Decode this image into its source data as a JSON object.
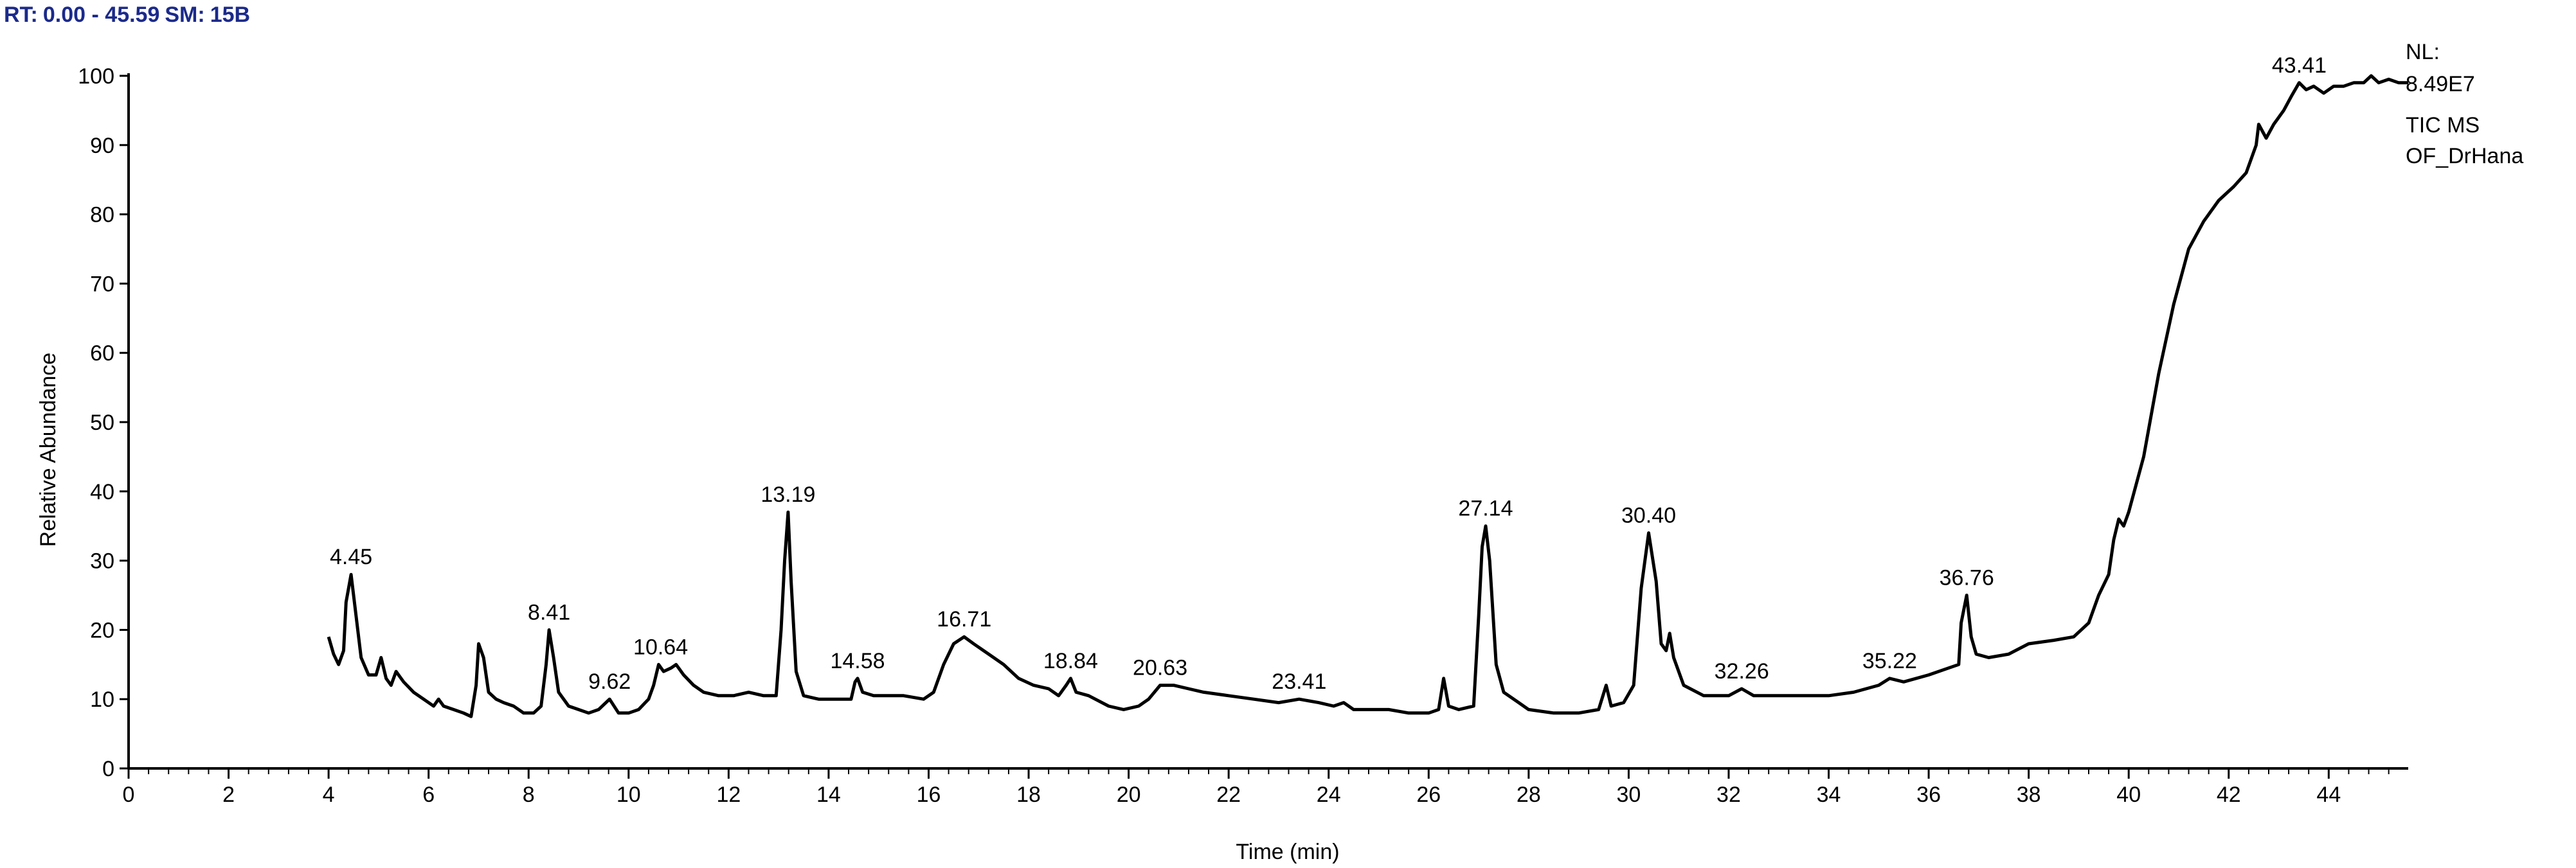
{
  "header": {
    "rt_label": "RT:",
    "rt_range": "0.00 - 45.59",
    "sm_label": "SM:",
    "sm_value": "15B"
  },
  "info": {
    "nl_label": "NL:",
    "nl_value": "8.49E7",
    "scan_type": "TIC MS",
    "file_name": "OF_DrHana"
  },
  "chart_data": {
    "type": "line",
    "title": "",
    "xlabel": "Time (min)",
    "ylabel": "Relative Abundance",
    "xlim": [
      0,
      45.59
    ],
    "ylim": [
      0,
      100
    ],
    "x_ticks": [
      0,
      2,
      4,
      6,
      8,
      10,
      12,
      14,
      16,
      18,
      20,
      22,
      24,
      26,
      28,
      30,
      32,
      34,
      36,
      38,
      40,
      42,
      44
    ],
    "y_ticks": [
      0,
      10,
      20,
      30,
      40,
      50,
      60,
      70,
      80,
      90,
      100
    ],
    "grid": false,
    "legend": "none",
    "series": [
      {
        "color": "#000000",
        "points": [
          [
            4.0,
            19
          ],
          [
            4.1,
            16.5
          ],
          [
            4.2,
            15
          ],
          [
            4.3,
            17
          ],
          [
            4.35,
            24
          ],
          [
            4.45,
            28
          ],
          [
            4.55,
            22
          ],
          [
            4.65,
            16
          ],
          [
            4.8,
            13.5
          ],
          [
            4.95,
            13.5
          ],
          [
            5.05,
            16
          ],
          [
            5.15,
            13
          ],
          [
            5.25,
            12
          ],
          [
            5.35,
            14
          ],
          [
            5.5,
            12.5
          ],
          [
            5.7,
            11
          ],
          [
            5.9,
            10
          ],
          [
            6.1,
            9
          ],
          [
            6.2,
            10
          ],
          [
            6.3,
            9
          ],
          [
            6.5,
            8.5
          ],
          [
            6.7,
            8
          ],
          [
            6.85,
            7.5
          ],
          [
            6.95,
            12
          ],
          [
            7.0,
            18
          ],
          [
            7.1,
            16
          ],
          [
            7.2,
            11
          ],
          [
            7.35,
            10
          ],
          [
            7.5,
            9.5
          ],
          [
            7.7,
            9
          ],
          [
            7.9,
            8
          ],
          [
            8.1,
            8
          ],
          [
            8.25,
            9
          ],
          [
            8.35,
            15
          ],
          [
            8.41,
            20
          ],
          [
            8.5,
            16
          ],
          [
            8.6,
            11
          ],
          [
            8.8,
            9
          ],
          [
            9.0,
            8.5
          ],
          [
            9.2,
            8
          ],
          [
            9.4,
            8.5
          ],
          [
            9.62,
            10
          ],
          [
            9.8,
            8
          ],
          [
            10.0,
            8
          ],
          [
            10.2,
            8.5
          ],
          [
            10.4,
            10
          ],
          [
            10.5,
            12
          ],
          [
            10.6,
            15
          ],
          [
            10.7,
            14
          ],
          [
            10.85,
            14.5
          ],
          [
            10.95,
            15
          ],
          [
            11.1,
            13.5
          ],
          [
            11.3,
            12
          ],
          [
            11.5,
            11
          ],
          [
            11.8,
            10.5
          ],
          [
            12.1,
            10.5
          ],
          [
            12.4,
            11
          ],
          [
            12.7,
            10.5
          ],
          [
            12.95,
            10.5
          ],
          [
            13.05,
            20
          ],
          [
            13.12,
            30
          ],
          [
            13.19,
            37
          ],
          [
            13.25,
            27
          ],
          [
            13.35,
            14
          ],
          [
            13.5,
            10.5
          ],
          [
            13.8,
            10
          ],
          [
            14.2,
            10
          ],
          [
            14.45,
            10
          ],
          [
            14.53,
            12.5
          ],
          [
            14.58,
            13
          ],
          [
            14.68,
            11
          ],
          [
            14.9,
            10.5
          ],
          [
            15.5,
            10.5
          ],
          [
            15.9,
            10
          ],
          [
            16.1,
            11
          ],
          [
            16.3,
            15
          ],
          [
            16.5,
            18
          ],
          [
            16.71,
            19
          ],
          [
            16.9,
            18
          ],
          [
            17.2,
            16.5
          ],
          [
            17.5,
            15
          ],
          [
            17.8,
            13
          ],
          [
            18.1,
            12
          ],
          [
            18.4,
            11.5
          ],
          [
            18.6,
            10.5
          ],
          [
            18.75,
            12
          ],
          [
            18.84,
            13
          ],
          [
            18.95,
            11
          ],
          [
            19.2,
            10.5
          ],
          [
            19.6,
            9
          ],
          [
            19.9,
            8.5
          ],
          [
            20.2,
            9
          ],
          [
            20.4,
            10
          ],
          [
            20.63,
            12
          ],
          [
            20.9,
            12
          ],
          [
            21.2,
            11.5
          ],
          [
            21.5,
            11
          ],
          [
            22.0,
            10.5
          ],
          [
            22.5,
            10
          ],
          [
            23.0,
            9.5
          ],
          [
            23.41,
            10
          ],
          [
            23.8,
            9.5
          ],
          [
            24.1,
            9
          ],
          [
            24.3,
            9.5
          ],
          [
            24.5,
            8.5
          ],
          [
            24.8,
            8.5
          ],
          [
            25.2,
            8.5
          ],
          [
            25.6,
            8
          ],
          [
            26.0,
            8
          ],
          [
            26.2,
            8.5
          ],
          [
            26.3,
            13
          ],
          [
            26.4,
            9
          ],
          [
            26.6,
            8.5
          ],
          [
            26.9,
            9
          ],
          [
            27.0,
            22
          ],
          [
            27.07,
            32
          ],
          [
            27.14,
            35
          ],
          [
            27.22,
            30
          ],
          [
            27.35,
            15
          ],
          [
            27.5,
            11
          ],
          [
            27.8,
            9.5
          ],
          [
            28.0,
            8.5
          ],
          [
            28.5,
            8
          ],
          [
            29.0,
            8
          ],
          [
            29.4,
            8.5
          ],
          [
            29.55,
            12
          ],
          [
            29.65,
            9
          ],
          [
            29.9,
            9.5
          ],
          [
            30.1,
            12
          ],
          [
            30.25,
            26
          ],
          [
            30.4,
            34
          ],
          [
            30.55,
            27
          ],
          [
            30.65,
            18
          ],
          [
            30.75,
            17
          ],
          [
            30.82,
            19.5
          ],
          [
            30.9,
            16
          ],
          [
            31.1,
            12
          ],
          [
            31.5,
            10.5
          ],
          [
            32.0,
            10.5
          ],
          [
            32.26,
            11.5
          ],
          [
            32.5,
            10.5
          ],
          [
            33.0,
            10.5
          ],
          [
            33.5,
            10.5
          ],
          [
            34.0,
            10.5
          ],
          [
            34.5,
            11
          ],
          [
            35.0,
            12
          ],
          [
            35.22,
            13
          ],
          [
            35.5,
            12.5
          ],
          [
            36.0,
            13.5
          ],
          [
            36.4,
            14.5
          ],
          [
            36.6,
            15
          ],
          [
            36.65,
            21
          ],
          [
            36.76,
            25
          ],
          [
            36.85,
            19
          ],
          [
            36.95,
            16.5
          ],
          [
            37.2,
            16
          ],
          [
            37.6,
            16.5
          ],
          [
            38.0,
            18
          ],
          [
            38.5,
            18.5
          ],
          [
            38.9,
            19
          ],
          [
            39.2,
            21
          ],
          [
            39.4,
            25
          ],
          [
            39.6,
            28
          ],
          [
            39.7,
            33
          ],
          [
            39.8,
            36
          ],
          [
            39.9,
            35
          ],
          [
            40.0,
            37
          ],
          [
            40.3,
            45
          ],
          [
            40.6,
            57
          ],
          [
            40.9,
            67
          ],
          [
            41.2,
            75
          ],
          [
            41.5,
            79
          ],
          [
            41.8,
            82
          ],
          [
            42.1,
            84
          ],
          [
            42.35,
            86
          ],
          [
            42.55,
            90
          ],
          [
            42.6,
            93
          ],
          [
            42.75,
            91
          ],
          [
            42.9,
            93
          ],
          [
            43.1,
            95
          ],
          [
            43.25,
            97
          ],
          [
            43.41,
            99
          ],
          [
            43.55,
            98
          ],
          [
            43.7,
            98.5
          ],
          [
            43.9,
            97.5
          ],
          [
            44.1,
            98.5
          ],
          [
            44.3,
            98.5
          ],
          [
            44.5,
            99
          ],
          [
            44.7,
            99
          ],
          [
            44.85,
            100
          ],
          [
            45.0,
            99
          ],
          [
            45.2,
            99.5
          ],
          [
            45.4,
            99
          ],
          [
            45.59,
            99
          ]
        ]
      }
    ],
    "peak_labels": [
      {
        "x": 4.45,
        "y": 28,
        "text": "4.45"
      },
      {
        "x": 8.41,
        "y": 20,
        "text": "8.41"
      },
      {
        "x": 9.62,
        "y": 10,
        "text": "9.62"
      },
      {
        "x": 10.64,
        "y": 15,
        "text": "10.64"
      },
      {
        "x": 13.19,
        "y": 37,
        "text": "13.19"
      },
      {
        "x": 14.58,
        "y": 13,
        "text": "14.58"
      },
      {
        "x": 16.71,
        "y": 19,
        "text": "16.71"
      },
      {
        "x": 18.84,
        "y": 13,
        "text": "18.84"
      },
      {
        "x": 20.63,
        "y": 12,
        "text": "20.63"
      },
      {
        "x": 23.41,
        "y": 10,
        "text": "23.41"
      },
      {
        "x": 27.14,
        "y": 35,
        "text": "27.14"
      },
      {
        "x": 30.4,
        "y": 34,
        "text": "30.40"
      },
      {
        "x": 32.26,
        "y": 11.5,
        "text": "32.26"
      },
      {
        "x": 35.22,
        "y": 13,
        "text": "35.22"
      },
      {
        "x": 36.76,
        "y": 25,
        "text": "36.76"
      },
      {
        "x": 43.41,
        "y": 99,
        "text": "43.41"
      }
    ]
  }
}
